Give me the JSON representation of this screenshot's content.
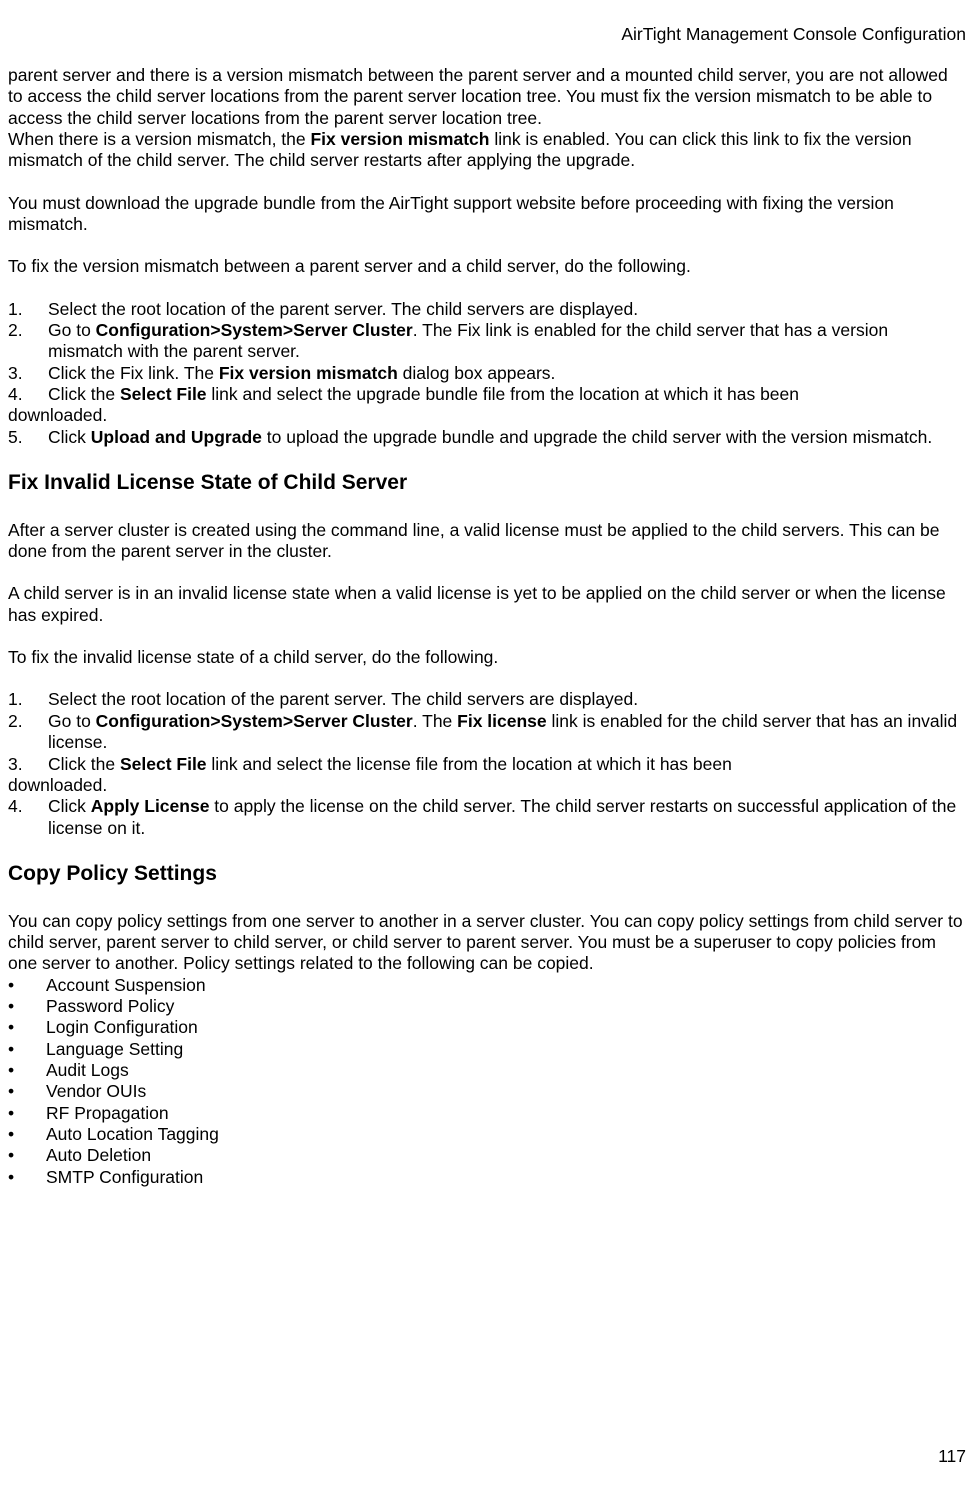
{
  "header": {
    "title": "AirTight Management Console Configuration"
  },
  "body": {
    "p1_a": "parent server and there is a version mismatch between the parent server and a mounted child server,  you are not allowed to access the child server locations from the parent server location tree. You must fix the version mismatch to be able to access the child server locations from the parent server location tree.",
    "p1_b_pre": "When there is a version mismatch, the ",
    "p1_b_bold": "Fix version mismatch",
    "p1_b_post": " link is enabled. You can click this link to fix the version mismatch of the child server. The child server restarts after applying the upgrade.",
    "p2": "You must download the upgrade bundle from the AirTight support website before proceeding with fixing the version mismatch.",
    "p3": "To fix the version mismatch between a parent server and a child server, do the following.",
    "list1": {
      "i1_num": "1.",
      "i1_text": "Select the root location of the parent server. The child servers are displayed.",
      "i2_num": "2.",
      "i2_pre": "Go to ",
      "i2_bold": "Configuration>System>Server Cluster",
      "i2_post": ". The Fix link is enabled for the child server that has a version mismatch with the parent server.",
      "i3_num": "3.",
      "i3_pre": "Click the Fix link. The ",
      "i3_bold": "Fix version mismatch",
      "i3_post": " dialog box appears.",
      "i4_num": "4.",
      "i4_pre": "Click the ",
      "i4_bold": "Select File",
      "i4_post": " link and select the upgrade bundle file from the location at which it has been",
      "i4_cont": "downloaded.",
      "i5_num": "5.",
      "i5_pre": "Click ",
      "i5_bold": "Upload and Upgrade",
      "i5_post": " to upload the upgrade bundle and upgrade the child server with the version mismatch."
    },
    "h1": "Fix Invalid License State of Child Server",
    "p4": "After a server cluster is created using the command line, a valid license must be applied to the child servers. This can be done from the parent server in the cluster.",
    "p5": "A child server is in an invalid license state when a valid license is yet to be applied on the child server or when the license has expired.",
    "p6": "To fix the invalid license state of a child server, do the following.",
    "list2": {
      "i1_num": "1.",
      "i1_text": "Select the root location of the parent server. The child servers are displayed.",
      "i2_num": "2.",
      "i2_pre": "Go to ",
      "i2_bold": "Configuration>System>Server Cluster",
      "i2_post": ". The ",
      "i2_bold2": "Fix license",
      "i2_post2": " link is enabled for the child server that has an invalid license.",
      "i3_num": "3.",
      "i3_pre": "Click the ",
      "i3_bold": "Select File",
      "i3_post": " link and select the license file from the location at which it has been",
      "i3_cont": "downloaded.",
      "i4_num": "4.",
      "i4_pre": "Click ",
      "i4_bold": "Apply License",
      "i4_post": " to apply the license on the child server. The child server restarts on successful application of the license on it."
    },
    "h2": "Copy Policy Settings",
    "p7": "You can copy policy settings from one server to another in a server cluster. You can copy policy settings from child server to child server, parent server to child server, or child server to parent server. You must be a superuser to copy policies from one server to another. Policy settings related to the following can be copied.",
    "bullets": {
      "b1": "Account Suspension",
      "b2": "Password Policy",
      "b3": "Login Configuration",
      "b4": "Language Setting",
      "b5": "Audit Logs",
      "b6": "Vendor OUIs",
      "b7": "RF Propagation",
      "b8": "Auto Location Tagging",
      "b9": "Auto Deletion",
      "b10": "SMTP Configuration"
    }
  },
  "footer": {
    "pagenum": "117"
  },
  "bullet_char": "•"
}
